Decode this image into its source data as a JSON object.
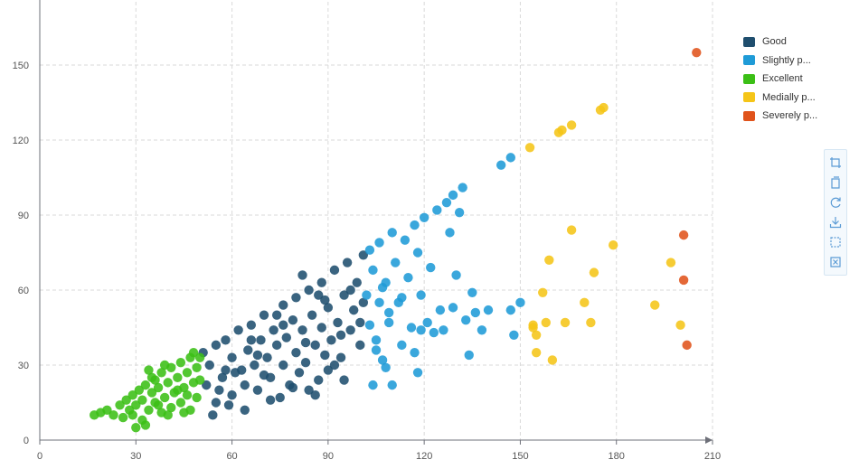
{
  "chart_data": {
    "type": "scatter",
    "xlabel": "",
    "ylabel": "",
    "xlim": [
      0,
      210
    ],
    "ylim": [
      0,
      150
    ],
    "x_ticks": [
      "0",
      "30",
      "60",
      "90",
      "120",
      "150",
      "180",
      "210"
    ],
    "y_ticks": [
      "0",
      "30",
      "60",
      "90",
      "120",
      "150"
    ],
    "grid": true,
    "legend_position": "top-right",
    "series": [
      {
        "name": "Good",
        "color": "#1f4e6e",
        "points": [
          [
            51,
            35
          ],
          [
            52,
            22
          ],
          [
            53,
            30
          ],
          [
            55,
            38
          ],
          [
            55,
            15
          ],
          [
            57,
            25
          ],
          [
            58,
            40
          ],
          [
            60,
            33
          ],
          [
            60,
            18
          ],
          [
            62,
            44
          ],
          [
            63,
            28
          ],
          [
            64,
            22
          ],
          [
            65,
            36
          ],
          [
            66,
            46
          ],
          [
            67,
            30
          ],
          [
            68,
            20
          ],
          [
            69,
            40
          ],
          [
            70,
            50
          ],
          [
            71,
            33
          ],
          [
            72,
            25
          ],
          [
            73,
            44
          ],
          [
            74,
            38
          ],
          [
            75,
            17
          ],
          [
            76,
            54
          ],
          [
            76,
            30
          ],
          [
            77,
            41
          ],
          [
            78,
            22
          ],
          [
            79,
            48
          ],
          [
            80,
            57
          ],
          [
            80,
            35
          ],
          [
            81,
            27
          ],
          [
            82,
            44
          ],
          [
            83,
            31
          ],
          [
            84,
            60
          ],
          [
            84,
            20
          ],
          [
            85,
            50
          ],
          [
            86,
            38
          ],
          [
            87,
            24
          ],
          [
            88,
            63
          ],
          [
            88,
            45
          ],
          [
            89,
            34
          ],
          [
            90,
            53
          ],
          [
            90,
            28
          ],
          [
            91,
            40
          ],
          [
            92,
            68
          ],
          [
            93,
            47
          ],
          [
            94,
            33
          ],
          [
            95,
            58
          ],
          [
            95,
            24
          ],
          [
            96,
            71
          ],
          [
            97,
            44
          ],
          [
            98,
            52
          ],
          [
            99,
            63
          ],
          [
            100,
            38
          ],
          [
            101,
            74
          ],
          [
            101,
            55
          ],
          [
            54,
            10
          ],
          [
            56,
            20
          ],
          [
            59,
            14
          ],
          [
            61,
            27
          ],
          [
            64,
            12
          ],
          [
            68,
            34
          ],
          [
            72,
            16
          ],
          [
            76,
            46
          ],
          [
            79,
            21
          ],
          [
            83,
            39
          ],
          [
            86,
            18
          ],
          [
            89,
            56
          ],
          [
            92,
            30
          ],
          [
            97,
            60
          ],
          [
            100,
            47
          ],
          [
            82,
            66
          ],
          [
            87,
            58
          ],
          [
            94,
            42
          ],
          [
            70,
            26
          ],
          [
            66,
            40
          ],
          [
            74,
            50
          ],
          [
            58,
            28
          ]
        ]
      },
      {
        "name": "Slightly p...",
        "color": "#1f9bd7",
        "points": [
          [
            102,
            58
          ],
          [
            103,
            76
          ],
          [
            103,
            46
          ],
          [
            104,
            68
          ],
          [
            105,
            40
          ],
          [
            106,
            79
          ],
          [
            106,
            55
          ],
          [
            107,
            32
          ],
          [
            108,
            63
          ],
          [
            109,
            47
          ],
          [
            110,
            83
          ],
          [
            110,
            22
          ],
          [
            111,
            71
          ],
          [
            112,
            55
          ],
          [
            113,
            38
          ],
          [
            114,
            80
          ],
          [
            115,
            65
          ],
          [
            116,
            45
          ],
          [
            117,
            86
          ],
          [
            118,
            75
          ],
          [
            118,
            27
          ],
          [
            119,
            58
          ],
          [
            120,
            89
          ],
          [
            121,
            47
          ],
          [
            122,
            69
          ],
          [
            124,
            92
          ],
          [
            125,
            52
          ],
          [
            126,
            44
          ],
          [
            127,
            95
          ],
          [
            128,
            83
          ],
          [
            129,
            98
          ],
          [
            129,
            53
          ],
          [
            130,
            66
          ],
          [
            131,
            91
          ],
          [
            132,
            101
          ],
          [
            133,
            48
          ],
          [
            134,
            34
          ],
          [
            135,
            59
          ],
          [
            136,
            51
          ],
          [
            138,
            44
          ],
          [
            140,
            52
          ],
          [
            144,
            110
          ],
          [
            147,
            113
          ],
          [
            147,
            52
          ],
          [
            148,
            42
          ],
          [
            150,
            55
          ],
          [
            107,
            61
          ],
          [
            109,
            51
          ],
          [
            113,
            57
          ],
          [
            105,
            36
          ],
          [
            104,
            22
          ],
          [
            117,
            35
          ],
          [
            119,
            44
          ],
          [
            123,
            43
          ],
          [
            108,
            29
          ]
        ]
      },
      {
        "name": "Excellent",
        "color": "#3bbf16",
        "points": [
          [
            17,
            10
          ],
          [
            19,
            11
          ],
          [
            21,
            12
          ],
          [
            23,
            10
          ],
          [
            25,
            14
          ],
          [
            26,
            9
          ],
          [
            27,
            16
          ],
          [
            28,
            12
          ],
          [
            29,
            18
          ],
          [
            30,
            14
          ],
          [
            30,
            5
          ],
          [
            31,
            20
          ],
          [
            32,
            8
          ],
          [
            32,
            16
          ],
          [
            33,
            22
          ],
          [
            34,
            12
          ],
          [
            35,
            19
          ],
          [
            35,
            25
          ],
          [
            36,
            15
          ],
          [
            37,
            21
          ],
          [
            38,
            11
          ],
          [
            38,
            27
          ],
          [
            39,
            17
          ],
          [
            40,
            23
          ],
          [
            41,
            13
          ],
          [
            41,
            29
          ],
          [
            42,
            19
          ],
          [
            43,
            25
          ],
          [
            44,
            15
          ],
          [
            44,
            31
          ],
          [
            45,
            21
          ],
          [
            46,
            27
          ],
          [
            47,
            12
          ],
          [
            47,
            33
          ],
          [
            48,
            23
          ],
          [
            49,
            29
          ],
          [
            49,
            17
          ],
          [
            50,
            33
          ],
          [
            50,
            24
          ],
          [
            33,
            6
          ],
          [
            36,
            24
          ],
          [
            40,
            10
          ],
          [
            43,
            20
          ],
          [
            46,
            18
          ],
          [
            48,
            35
          ],
          [
            34,
            28
          ],
          [
            37,
            14
          ],
          [
            45,
            11
          ],
          [
            29,
            10
          ],
          [
            39,
            30
          ]
        ]
      },
      {
        "name": "Medially p...",
        "color": "#f5c518",
        "points": [
          [
            153,
            117
          ],
          [
            162,
            123
          ],
          [
            163,
            124
          ],
          [
            166,
            126
          ],
          [
            175,
            132
          ],
          [
            176,
            133
          ],
          [
            154,
            46
          ],
          [
            155,
            35
          ],
          [
            155,
            42
          ],
          [
            157,
            59
          ],
          [
            158,
            47
          ],
          [
            159,
            72
          ],
          [
            160,
            32
          ],
          [
            164,
            47
          ],
          [
            166,
            84
          ],
          [
            170,
            55
          ],
          [
            172,
            47
          ],
          [
            173,
            67
          ],
          [
            179,
            78
          ],
          [
            192,
            54
          ],
          [
            197,
            71
          ],
          [
            200,
            46
          ],
          [
            154,
            45
          ]
        ]
      },
      {
        "name": "Severely p...",
        "color": "#e0531b",
        "points": [
          [
            205,
            155
          ],
          [
            201,
            82
          ],
          [
            201,
            64
          ],
          [
            202,
            38
          ]
        ]
      }
    ]
  },
  "toolbox": {
    "icons": [
      "zoom-select-icon",
      "zoom-reset-icon",
      "restore-icon",
      "download-icon",
      "brush-rect-icon",
      "brush-clear-icon"
    ]
  }
}
